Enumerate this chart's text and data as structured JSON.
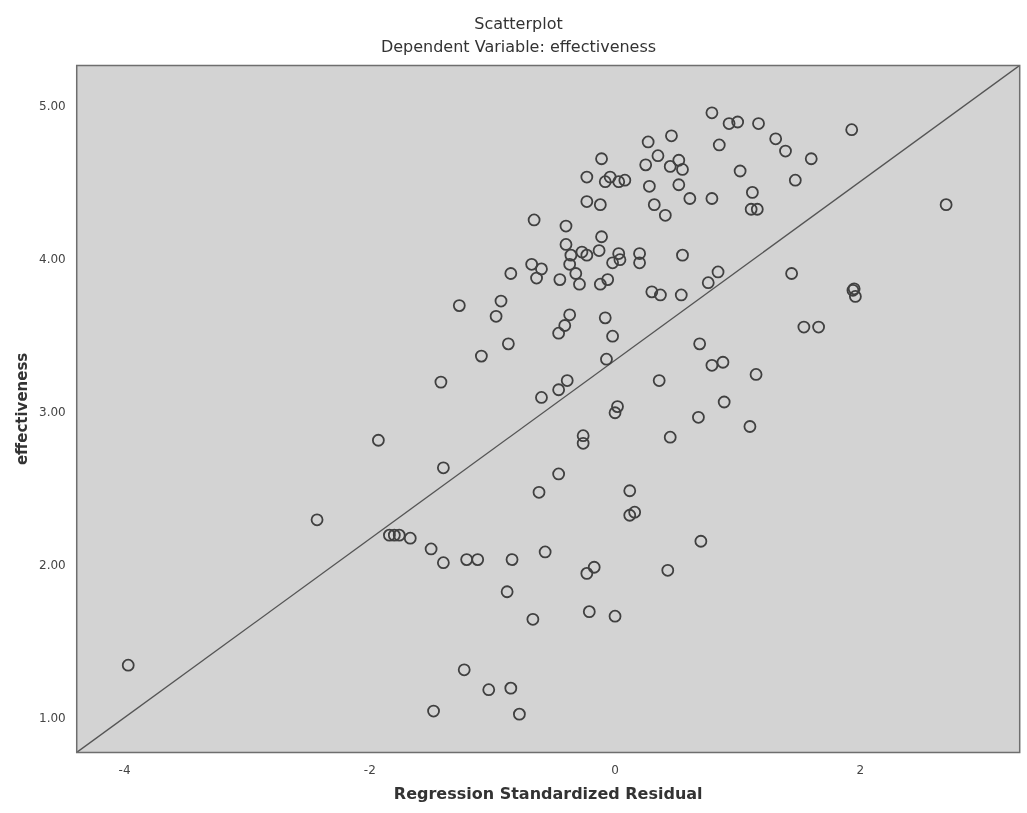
{
  "chart_data": {
    "type": "scatter",
    "title": "Scatterplot",
    "subtitle": "Dependent Variable: effectiveness",
    "xlabel": "Regression Standardized Residual",
    "ylabel": "effectiveness",
    "xlim": [
      -4.39,
      3.3
    ],
    "ylim": [
      0.78,
      5.27
    ],
    "xticks": [
      -4,
      -2,
      0,
      2
    ],
    "yticks": [
      {
        "value": 1,
        "label": "1.00"
      },
      {
        "value": 2,
        "label": "2.00"
      },
      {
        "value": 3,
        "label": "3.00"
      },
      {
        "value": 4,
        "label": "4.00"
      },
      {
        "value": 5,
        "label": "5.00"
      }
    ],
    "grid": false,
    "legend": false,
    "marker": "circle",
    "series": [
      {
        "color": "#404040",
        "x": [
          -0.66,
          -0.68,
          -0.6,
          -0.64,
          -0.85,
          -1.27,
          -0.93,
          -0.97,
          -0.87,
          -1.09,
          -1.42,
          -0.6,
          -1.93,
          0.79,
          0.93,
          1.0,
          1.17,
          1.93,
          1.31,
          1.39,
          1.6,
          1.47,
          2.7,
          0.46,
          0.27,
          0.85,
          -0.11,
          0.35,
          0.25,
          0.52,
          0.45,
          0.55,
          -0.23,
          -0.04,
          -0.08,
          0.03,
          0.08,
          1.02,
          0.28,
          0.52,
          1.12,
          0.61,
          0.79,
          -0.23,
          -0.12,
          0.32,
          1.11,
          1.16,
          0.41,
          -0.4,
          -0.11,
          -0.4,
          -0.27,
          -0.23,
          -0.13,
          -0.36,
          -0.37,
          -0.32,
          -0.45,
          -0.29,
          -0.12,
          -0.06,
          -0.02,
          0.04,
          0.03,
          0.2,
          0.2,
          0.55,
          0.3,
          0.37,
          0.54,
          0.76,
          0.84,
          1.44,
          1.95,
          1.96,
          1.94,
          1.54,
          1.66,
          -0.37,
          -0.41,
          -0.46,
          -0.08,
          -0.02,
          -0.07,
          0.69,
          0.79,
          0.88,
          1.15,
          0.36,
          -0.39,
          -0.46,
          0.89,
          0.02,
          0.0,
          0.68,
          1.1,
          0.45,
          -0.26,
          -0.26,
          -1.4,
          -2.43,
          -1.84,
          -1.8,
          -1.76,
          -1.67,
          -1.5,
          -1.4,
          -1.21,
          -1.12,
          -0.84,
          -0.62,
          -0.57,
          -0.88,
          -0.67,
          -1.23,
          -1.03,
          -0.85,
          -1.48,
          -0.78,
          -3.97,
          -0.46,
          0.12,
          0.12,
          0.16,
          0.7,
          -0.17,
          -0.23,
          0.43,
          -0.21,
          0.0
        ],
        "values": [
          4.26,
          3.97,
          3.94,
          3.88,
          3.91,
          3.7,
          3.73,
          3.63,
          3.45,
          3.37,
          3.2,
          3.1,
          2.82,
          4.96,
          4.89,
          4.9,
          4.89,
          4.85,
          4.79,
          4.71,
          4.66,
          4.52,
          4.36,
          4.81,
          4.77,
          4.75,
          4.66,
          4.68,
          4.62,
          4.65,
          4.61,
          4.59,
          4.54,
          4.54,
          4.51,
          4.51,
          4.52,
          4.58,
          4.48,
          4.49,
          4.44,
          4.4,
          4.4,
          4.38,
          4.36,
          4.36,
          4.33,
          4.33,
          4.29,
          4.22,
          4.15,
          4.1,
          4.05,
          4.03,
          4.06,
          4.03,
          3.97,
          3.91,
          3.87,
          3.84,
          3.84,
          3.87,
          3.98,
          4.0,
          4.04,
          4.04,
          3.98,
          4.03,
          3.79,
          3.77,
          3.77,
          3.85,
          3.92,
          3.91,
          3.81,
          3.76,
          3.8,
          3.56,
          3.56,
          3.64,
          3.57,
          3.52,
          3.62,
          3.5,
          3.35,
          3.45,
          3.31,
          3.33,
          3.25,
          3.21,
          3.21,
          3.15,
          3.07,
          3.04,
          3.0,
          2.97,
          2.91,
          2.84,
          2.85,
          2.8,
          2.64,
          2.3,
          2.2,
          2.2,
          2.2,
          2.18,
          2.11,
          2.02,
          2.04,
          2.04,
          2.04,
          2.48,
          2.09,
          1.83,
          1.65,
          1.32,
          1.19,
          1.2,
          1.05,
          1.03,
          1.35,
          2.6,
          2.49,
          2.33,
          2.35,
          2.16,
          1.99,
          1.95,
          1.97,
          1.7,
          1.67
        ]
      },
      {
        "type": "line",
        "marker": "none",
        "color": "#555555",
        "x": [
          -4.39,
          3.3
        ],
        "values": [
          0.78,
          5.27
        ]
      }
    ]
  }
}
